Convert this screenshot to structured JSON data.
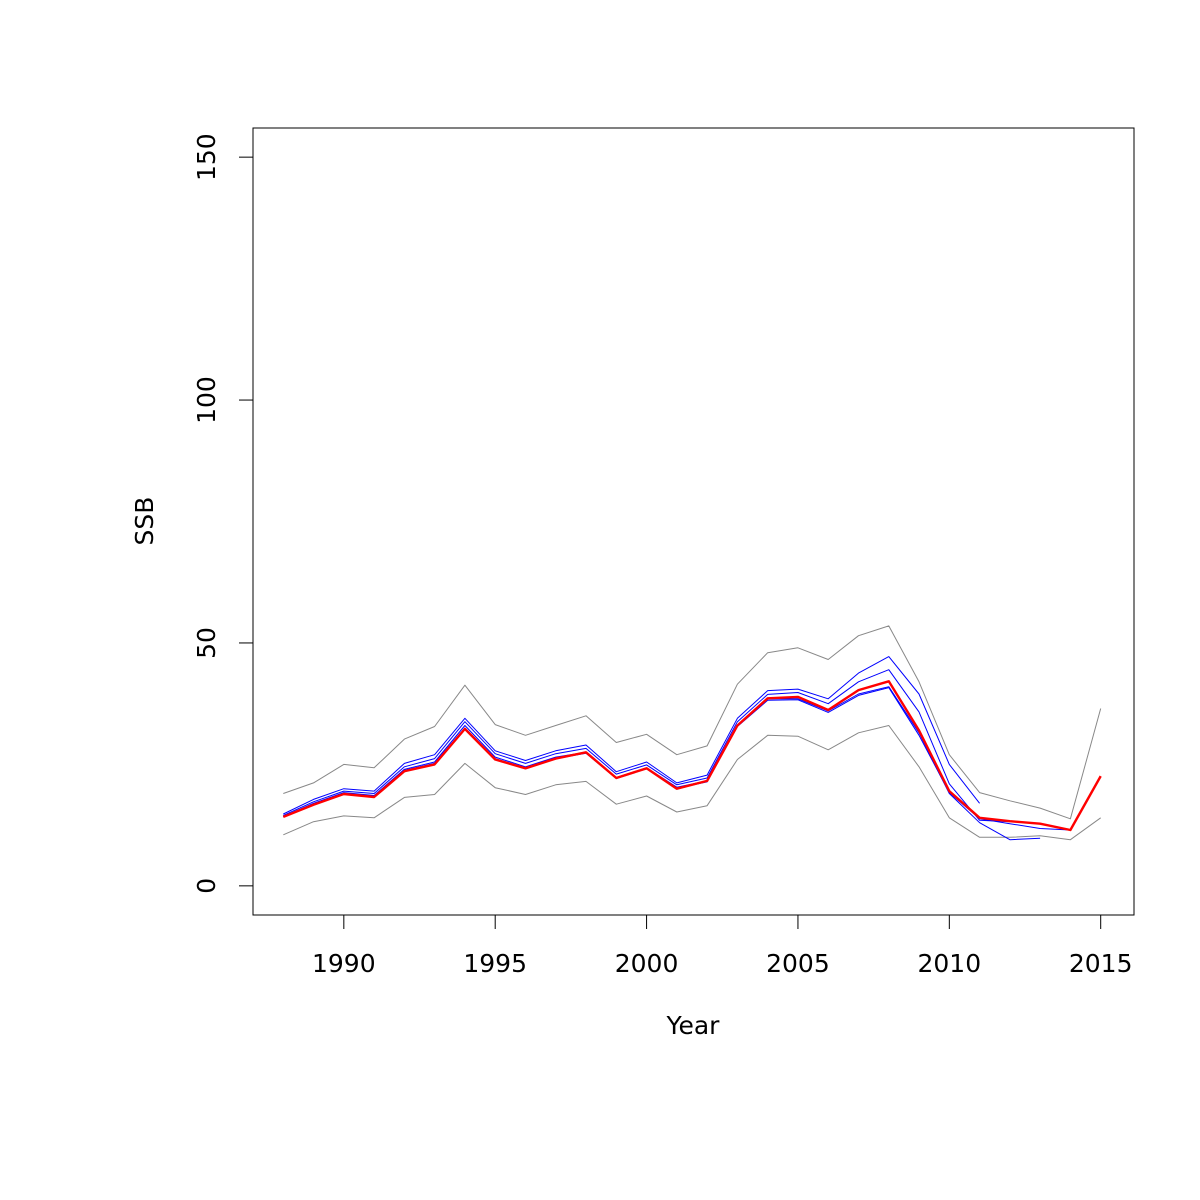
{
  "chart_data": {
    "type": "line",
    "title": "",
    "xlabel": "Year",
    "ylabel": "SSB",
    "xlim": [
      1987,
      2016.1
    ],
    "ylim": [
      -6,
      156
    ],
    "x_ticks": [
      1990,
      1995,
      2000,
      2005,
      2010,
      2015
    ],
    "y_ticks": [
      0,
      50,
      100,
      150
    ],
    "grid": false,
    "legend": "none",
    "series": [
      {
        "role": "upper-confidence",
        "color": "#888888",
        "width": 1,
        "x": [
          1988,
          1989,
          1990,
          1991,
          1992,
          1993,
          1994,
          1995,
          1996,
          1997,
          1998,
          1999,
          2000,
          2001,
          2002,
          2003,
          2004,
          2005,
          2006,
          2007,
          2008,
          2009,
          2010,
          2011,
          2012,
          2013,
          2014,
          2015
        ],
        "y": [
          19.0,
          21.2,
          25.0,
          24.3,
          30.2,
          32.8,
          41.3,
          33.2,
          31.0,
          33.0,
          35.0,
          29.5,
          31.2,
          27.0,
          28.8,
          41.5,
          48.0,
          49.0,
          46.6,
          51.5,
          53.5,
          42.0,
          27.0,
          19.2,
          17.5,
          16.0,
          13.8,
          36.5
        ]
      },
      {
        "role": "lower-confidence",
        "color": "#888888",
        "width": 1,
        "x": [
          1988,
          1989,
          1990,
          1991,
          1992,
          1993,
          1994,
          1995,
          1996,
          1997,
          1998,
          1999,
          2000,
          2001,
          2002,
          2003,
          2004,
          2005,
          2006,
          2007,
          2008,
          2009,
          2010,
          2011,
          2012,
          2013,
          2014,
          2015
        ],
        "y": [
          10.5,
          13.2,
          14.4,
          14.0,
          18.2,
          18.8,
          25.2,
          20.2,
          18.8,
          20.8,
          21.5,
          16.8,
          18.5,
          15.2,
          16.5,
          26.0,
          31.0,
          30.8,
          28.0,
          31.5,
          33.0,
          24.5,
          14.0,
          10.0,
          10.0,
          10.3,
          9.5,
          14.0
        ]
      },
      {
        "role": "retrospective-1",
        "color": "#0000ff",
        "width": 1,
        "x": [
          1988,
          1989,
          1990,
          1991,
          1992,
          1993,
          1994,
          1995,
          1996,
          1997,
          1998,
          1999,
          2000,
          2001,
          2002,
          2003,
          2004,
          2005,
          2006,
          2007,
          2008,
          2009,
          2010,
          2011
        ],
        "y": [
          14.8,
          17.8,
          20.0,
          19.5,
          25.2,
          27.0,
          34.5,
          27.8,
          25.8,
          27.8,
          29.0,
          23.5,
          25.5,
          21.2,
          22.8,
          34.5,
          40.2,
          40.5,
          38.5,
          43.8,
          47.2,
          39.5,
          25.0,
          17.0
        ]
      },
      {
        "role": "retrospective-2",
        "color": "#0000ff",
        "width": 1,
        "x": [
          1988,
          1989,
          1990,
          1991,
          1992,
          1993,
          1994,
          1995,
          1996,
          1997,
          1998,
          1999,
          2000,
          2001,
          2002,
          2003,
          2004,
          2005,
          2006,
          2007,
          2008,
          2009,
          2010,
          2011,
          2012
        ],
        "y": [
          14.5,
          17.3,
          19.5,
          19.0,
          24.5,
          26.2,
          33.8,
          27.2,
          25.2,
          27.2,
          28.3,
          23.0,
          24.9,
          20.8,
          22.2,
          33.8,
          39.4,
          39.8,
          37.5,
          42.0,
          44.5,
          35.8,
          21.0,
          13.5,
          13.2
        ]
      },
      {
        "role": "retrospective-3",
        "color": "#0000ff",
        "width": 1,
        "x": [
          1988,
          1989,
          1990,
          1991,
          1992,
          1993,
          1994,
          1995,
          1996,
          1997,
          1998,
          1999,
          2000,
          2001,
          2002,
          2003,
          2004,
          2005,
          2006,
          2007,
          2008,
          2009,
          2010,
          2011,
          2012,
          2013
        ],
        "y": [
          14.3,
          17.0,
          19.2,
          18.6,
          24.0,
          25.5,
          33.0,
          26.5,
          24.5,
          26.5,
          27.5,
          22.3,
          24.3,
          20.3,
          21.6,
          33.0,
          38.5,
          38.5,
          36.0,
          39.5,
          41.0,
          31.5,
          19.0,
          13.0,
          9.5,
          9.8
        ]
      },
      {
        "role": "retrospective-4",
        "color": "#0000ff",
        "width": 1,
        "x": [
          1988,
          1989,
          1990,
          1991,
          1992,
          1993,
          1994,
          1995,
          1996,
          1997,
          1998,
          1999,
          2000,
          2001,
          2002,
          2003,
          2004,
          2005,
          2006,
          2007,
          2008,
          2009,
          2010,
          2011,
          2012,
          2013,
          2014
        ],
        "y": [
          14.2,
          16.9,
          19.0,
          18.4,
          23.8,
          25.2,
          32.5,
          26.2,
          24.3,
          26.2,
          27.3,
          22.1,
          24.1,
          20.1,
          21.4,
          32.8,
          38.2,
          38.3,
          35.7,
          39.2,
          40.8,
          31.0,
          19.2,
          13.8,
          12.8,
          11.8,
          11.5
        ]
      },
      {
        "role": "final-estimate",
        "color": "#ff0000",
        "width": 2.4,
        "x": [
          1988,
          1989,
          1990,
          1991,
          1992,
          1993,
          1994,
          1995,
          1996,
          1997,
          1998,
          1999,
          2000,
          2001,
          2002,
          2003,
          2004,
          2005,
          2006,
          2007,
          2008,
          2009,
          2010,
          2011,
          2012,
          2013,
          2014,
          2015
        ],
        "y": [
          14.2,
          16.7,
          18.9,
          18.3,
          23.6,
          25.0,
          32.3,
          26.0,
          24.2,
          26.2,
          27.5,
          22.2,
          24.2,
          20.0,
          21.6,
          33.0,
          38.6,
          38.9,
          36.2,
          40.3,
          42.1,
          32.0,
          19.5,
          14.0,
          13.3,
          12.8,
          11.5,
          22.6
        ]
      }
    ]
  }
}
